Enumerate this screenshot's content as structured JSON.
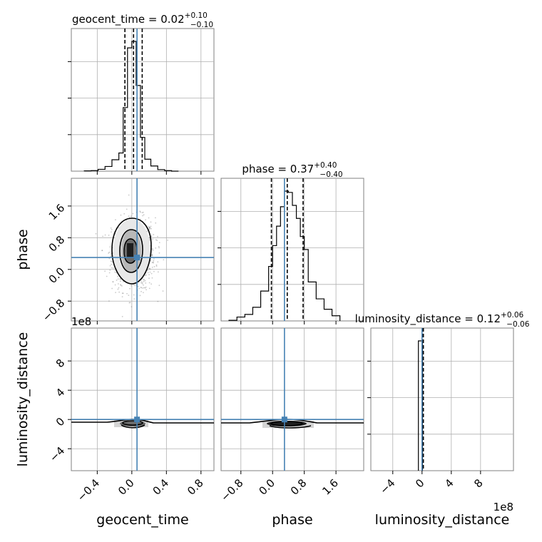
{
  "chart_data": {
    "type": "corner",
    "parameters": [
      "geocent_time",
      "phase",
      "luminosity_distance"
    ],
    "truth": {
      "geocent_time": 0.06,
      "phase": 0.3,
      "luminosity_distance": 0
    },
    "truth_color": "#4682b4",
    "grid": true,
    "axes": {
      "geocent_time": {
        "range": [
          -0.7,
          0.95
        ],
        "ticks": [
          -0.4,
          0.0,
          0.4,
          0.8
        ],
        "tick_labels": [
          "−0.4",
          "0.0",
          "0.4",
          "0.8"
        ]
      },
      "phase": {
        "range": [
          -1.3,
          2.3
        ],
        "ticks": [
          -0.8,
          0.0,
          0.8,
          1.6
        ],
        "tick_labels": [
          "−0.8",
          "0.0",
          "0.8",
          "1.6"
        ]
      },
      "luminosity_distance": {
        "range": [
          -700000000.0,
          1250000000.0
        ],
        "ticks": [
          -400000000.0,
          0,
          400000000.0,
          800000000.0
        ],
        "tick_labels": [
          "−4",
          "0",
          "4",
          "8"
        ],
        "offset_text": "1e8"
      }
    },
    "marginals": [
      {
        "param": "geocent_time",
        "title_name": "geocent_time = ",
        "title_value": "0.02",
        "title_plus": "+0.10",
        "title_minus": "−0.10",
        "quantiles": [
          -0.08,
          0.02,
          0.12
        ],
        "bins": [
          -0.55,
          -0.47,
          -0.39,
          -0.31,
          -0.23,
          -0.15,
          -0.1,
          -0.05,
          0.0,
          0.05,
          0.1,
          0.15,
          0.22,
          0.3,
          0.38,
          0.46,
          0.54
        ],
        "counts": [
          2,
          4,
          14,
          36,
          88,
          140,
          490,
          950,
          1000,
          660,
          260,
          92,
          40,
          12,
          4,
          0
        ]
      },
      {
        "param": "phase",
        "title_name": "phase = ",
        "title_value": "0.37",
        "title_plus": "+0.40",
        "title_minus": "−0.40",
        "quantiles": [
          -0.03,
          0.37,
          0.77
        ],
        "bins": [
          -1.1,
          -0.9,
          -0.7,
          -0.5,
          -0.3,
          -0.1,
          0.0,
          0.1,
          0.2,
          0.3,
          0.4,
          0.5,
          0.6,
          0.7,
          0.8,
          0.9,
          1.1,
          1.3,
          1.5,
          1.7
        ],
        "counts": [
          5,
          30,
          50,
          105,
          230,
          420,
          580,
          730,
          880,
          1000,
          990,
          890,
          790,
          650,
          550,
          300,
          170,
          90,
          40
        ]
      },
      {
        "param": "luminosity_distance",
        "title_name": "luminosity_distance = ",
        "title_value": "0.12",
        "title_plus": "+0.06",
        "title_minus": "−0.06",
        "quantiles": [
          6000000.0,
          12000000.0,
          18000000.0
        ],
        "bins": [
          -50000000.0,
          6000000.0
        ],
        "counts": [
          1000
        ]
      }
    ],
    "joint": [
      {
        "x": "geocent_time",
        "y": "phase"
      },
      {
        "x": "geocent_time",
        "y": "luminosity_distance"
      },
      {
        "x": "phase",
        "y": "luminosity_distance"
      }
    ]
  }
}
